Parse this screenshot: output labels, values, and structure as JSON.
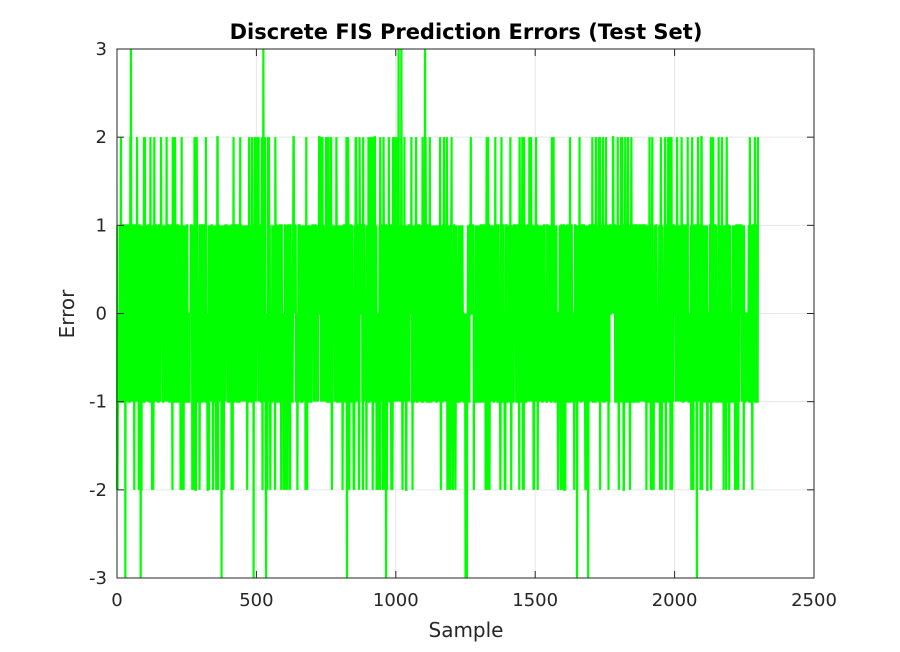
{
  "chart_data": {
    "type": "line",
    "title": "Discrete FIS Prediction Errors (Test Set)",
    "xlabel": "Sample",
    "ylabel": "Error",
    "xlim": [
      0,
      2500
    ],
    "ylim": [
      -3,
      3
    ],
    "x_ticks": [
      0,
      500,
      1000,
      1500,
      2000,
      2500
    ],
    "y_ticks": [
      -3,
      -2,
      -1,
      0,
      1,
      2,
      3
    ],
    "grid": true,
    "series_color": "#00ff00",
    "n_samples": 2300,
    "spikes": [
      {
        "x": 50,
        "y": 3
      },
      {
        "x": 525,
        "y": 3
      },
      {
        "x": 1010,
        "y": 3
      },
      {
        "x": 1020,
        "y": 3
      },
      {
        "x": 1105,
        "y": 3
      },
      {
        "x": 30,
        "y": -3
      },
      {
        "x": 85,
        "y": -3
      },
      {
        "x": 375,
        "y": -3
      },
      {
        "x": 490,
        "y": -3
      },
      {
        "x": 535,
        "y": -3
      },
      {
        "x": 825,
        "y": -3
      },
      {
        "x": 965,
        "y": -3
      },
      {
        "x": 1250,
        "y": -3
      },
      {
        "x": 1255,
        "y": -3
      },
      {
        "x": 1650,
        "y": -3
      },
      {
        "x": 1690,
        "y": -3
      },
      {
        "x": 2080,
        "y": -3
      }
    ],
    "series": [
      {
        "value_distribution": {
          "-2": 0.05,
          "-1": 0.33,
          "0": 0.26,
          "1": 0.3,
          "2": 0.06
        }
      }
    ]
  }
}
